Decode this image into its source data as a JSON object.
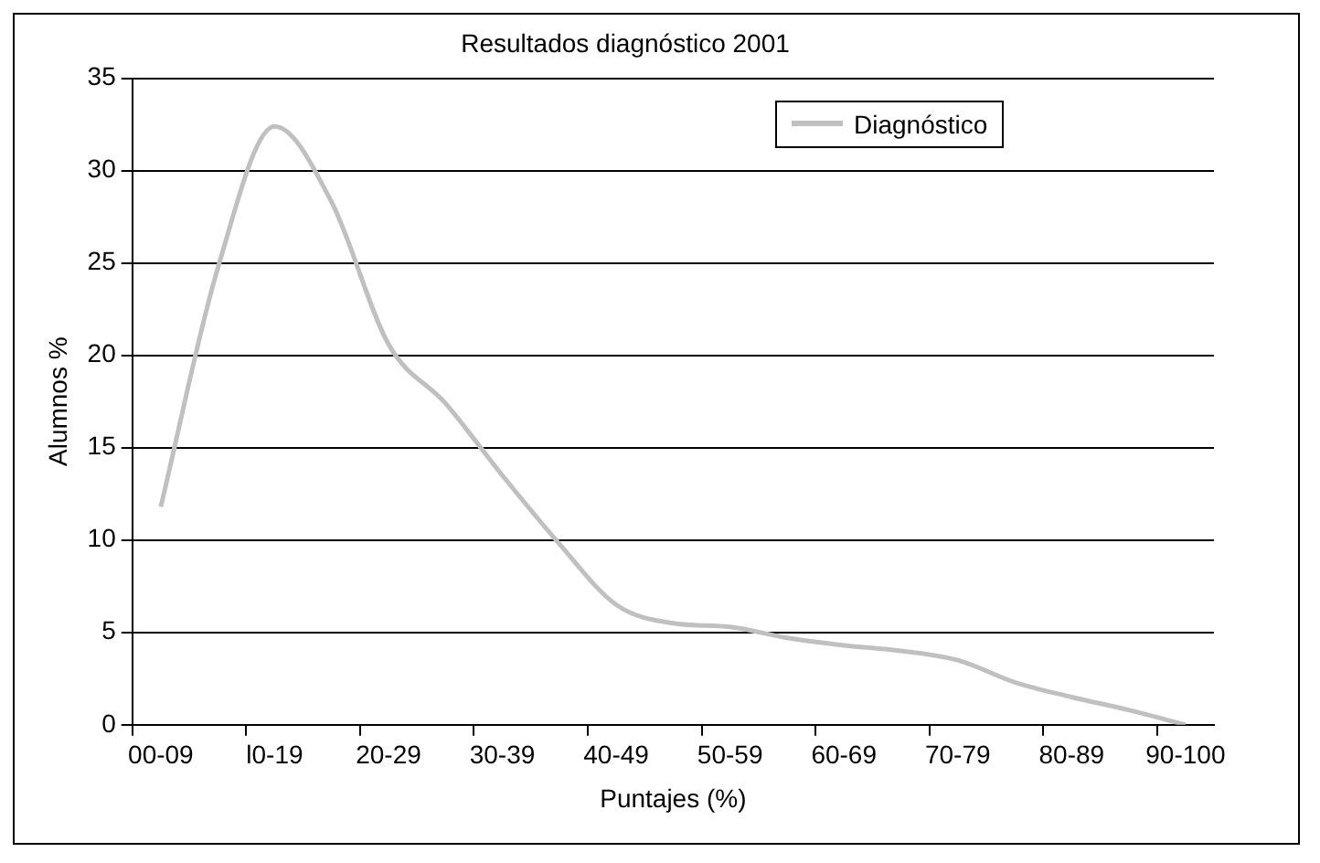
{
  "chart_data": {
    "type": "line",
    "title": "Resultados diagnóstico 2001",
    "xlabel": "Puntajes (%)",
    "ylabel": "Alumnos %",
    "categories": [
      "00-09",
      null,
      "l0-19",
      null,
      "20-29",
      null,
      "30-39",
      null,
      "40-49",
      null,
      "50-59",
      null,
      "60-69",
      null,
      "70-79",
      null,
      "80-89",
      null,
      "90-100"
    ],
    "series": [
      {
        "name": "Diagnóstico",
        "color": "#c0c0c0",
        "values": [
          11.8,
          24.7,
          32.4,
          28.3,
          20.6,
          17.4,
          13.5,
          9.8,
          6.5,
          5.5,
          5.3,
          4.7,
          4.3,
          4.0,
          3.5,
          2.3,
          1.5,
          0.8,
          0
        ]
      }
    ],
    "ylim": [
      0,
      35
    ],
    "yticks": [
      0,
      5,
      10,
      15,
      20,
      25,
      30,
      35
    ],
    "grid": "y",
    "legend": "top right",
    "marker": "none",
    "line_style": "solid"
  }
}
